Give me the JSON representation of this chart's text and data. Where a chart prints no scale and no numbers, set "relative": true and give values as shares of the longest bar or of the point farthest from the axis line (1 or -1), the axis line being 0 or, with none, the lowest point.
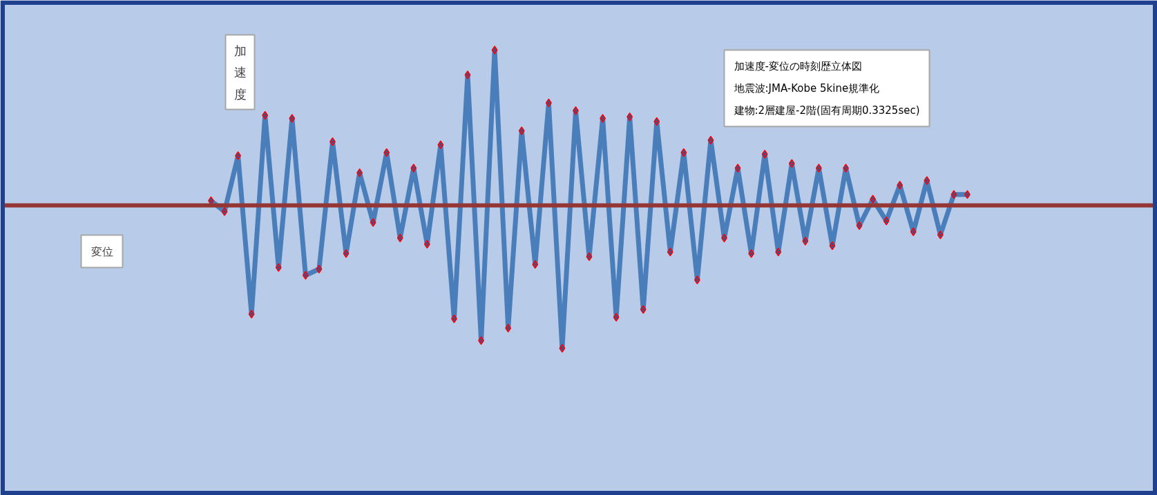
{
  "chart_data": {
    "type": "line",
    "title": "加速度-変位の時刻歴立体図",
    "annotations": [
      "地震波:JMA-Kobe 5kine規準化",
      "建物:2層建屋-2階(固有周期0.3325sec)",
      "変位"
    ],
    "ylabel": "加速度",
    "relative": true,
    "categories": [
      null,
      null,
      null,
      null,
      null,
      null,
      null,
      null,
      null,
      null,
      null,
      null,
      null,
      null,
      null,
      null,
      null,
      null,
      null,
      null,
      null,
      null,
      null,
      null,
      null,
      null,
      null,
      null,
      null,
      null,
      null,
      null,
      null,
      null,
      null,
      null,
      null,
      null,
      null,
      null,
      null,
      null,
      null,
      null,
      null,
      null,
      null,
      null,
      null,
      null,
      null,
      null,
      null,
      null,
      null,
      null,
      null
    ],
    "series": [
      {
        "color": "#4a7ebb",
        "values": [
          0.03,
          -0.04,
          0.32,
          -0.7,
          0.58,
          -0.4,
          0.56,
          -0.45,
          -0.41,
          0.41,
          -0.31,
          0.21,
          -0.11,
          0.34,
          -0.21,
          0.24,
          -0.25,
          0.39,
          -0.73,
          0.84,
          -0.87,
          1.0,
          -0.79,
          0.48,
          -0.38,
          0.66,
          -0.92,
          0.61,
          -0.33,
          0.56,
          -0.72,
          0.57,
          -0.67,
          0.54,
          -0.3,
          0.34,
          -0.48,
          0.42,
          -0.21,
          0.24,
          -0.31,
          0.33,
          -0.3,
          0.27,
          -0.23,
          0.24,
          -0.26,
          0.24,
          -0.13,
          0.04,
          -0.1,
          0.13,
          -0.17,
          0.16,
          -0.19,
          0.07,
          0.07
        ]
      }
    ],
    "marker": "diamond",
    "line_style": "solid",
    "ref_lines": [
      {
        "axis": "y",
        "value": 0,
        "color": "#943634"
      }
    ],
    "grid": false
  }
}
